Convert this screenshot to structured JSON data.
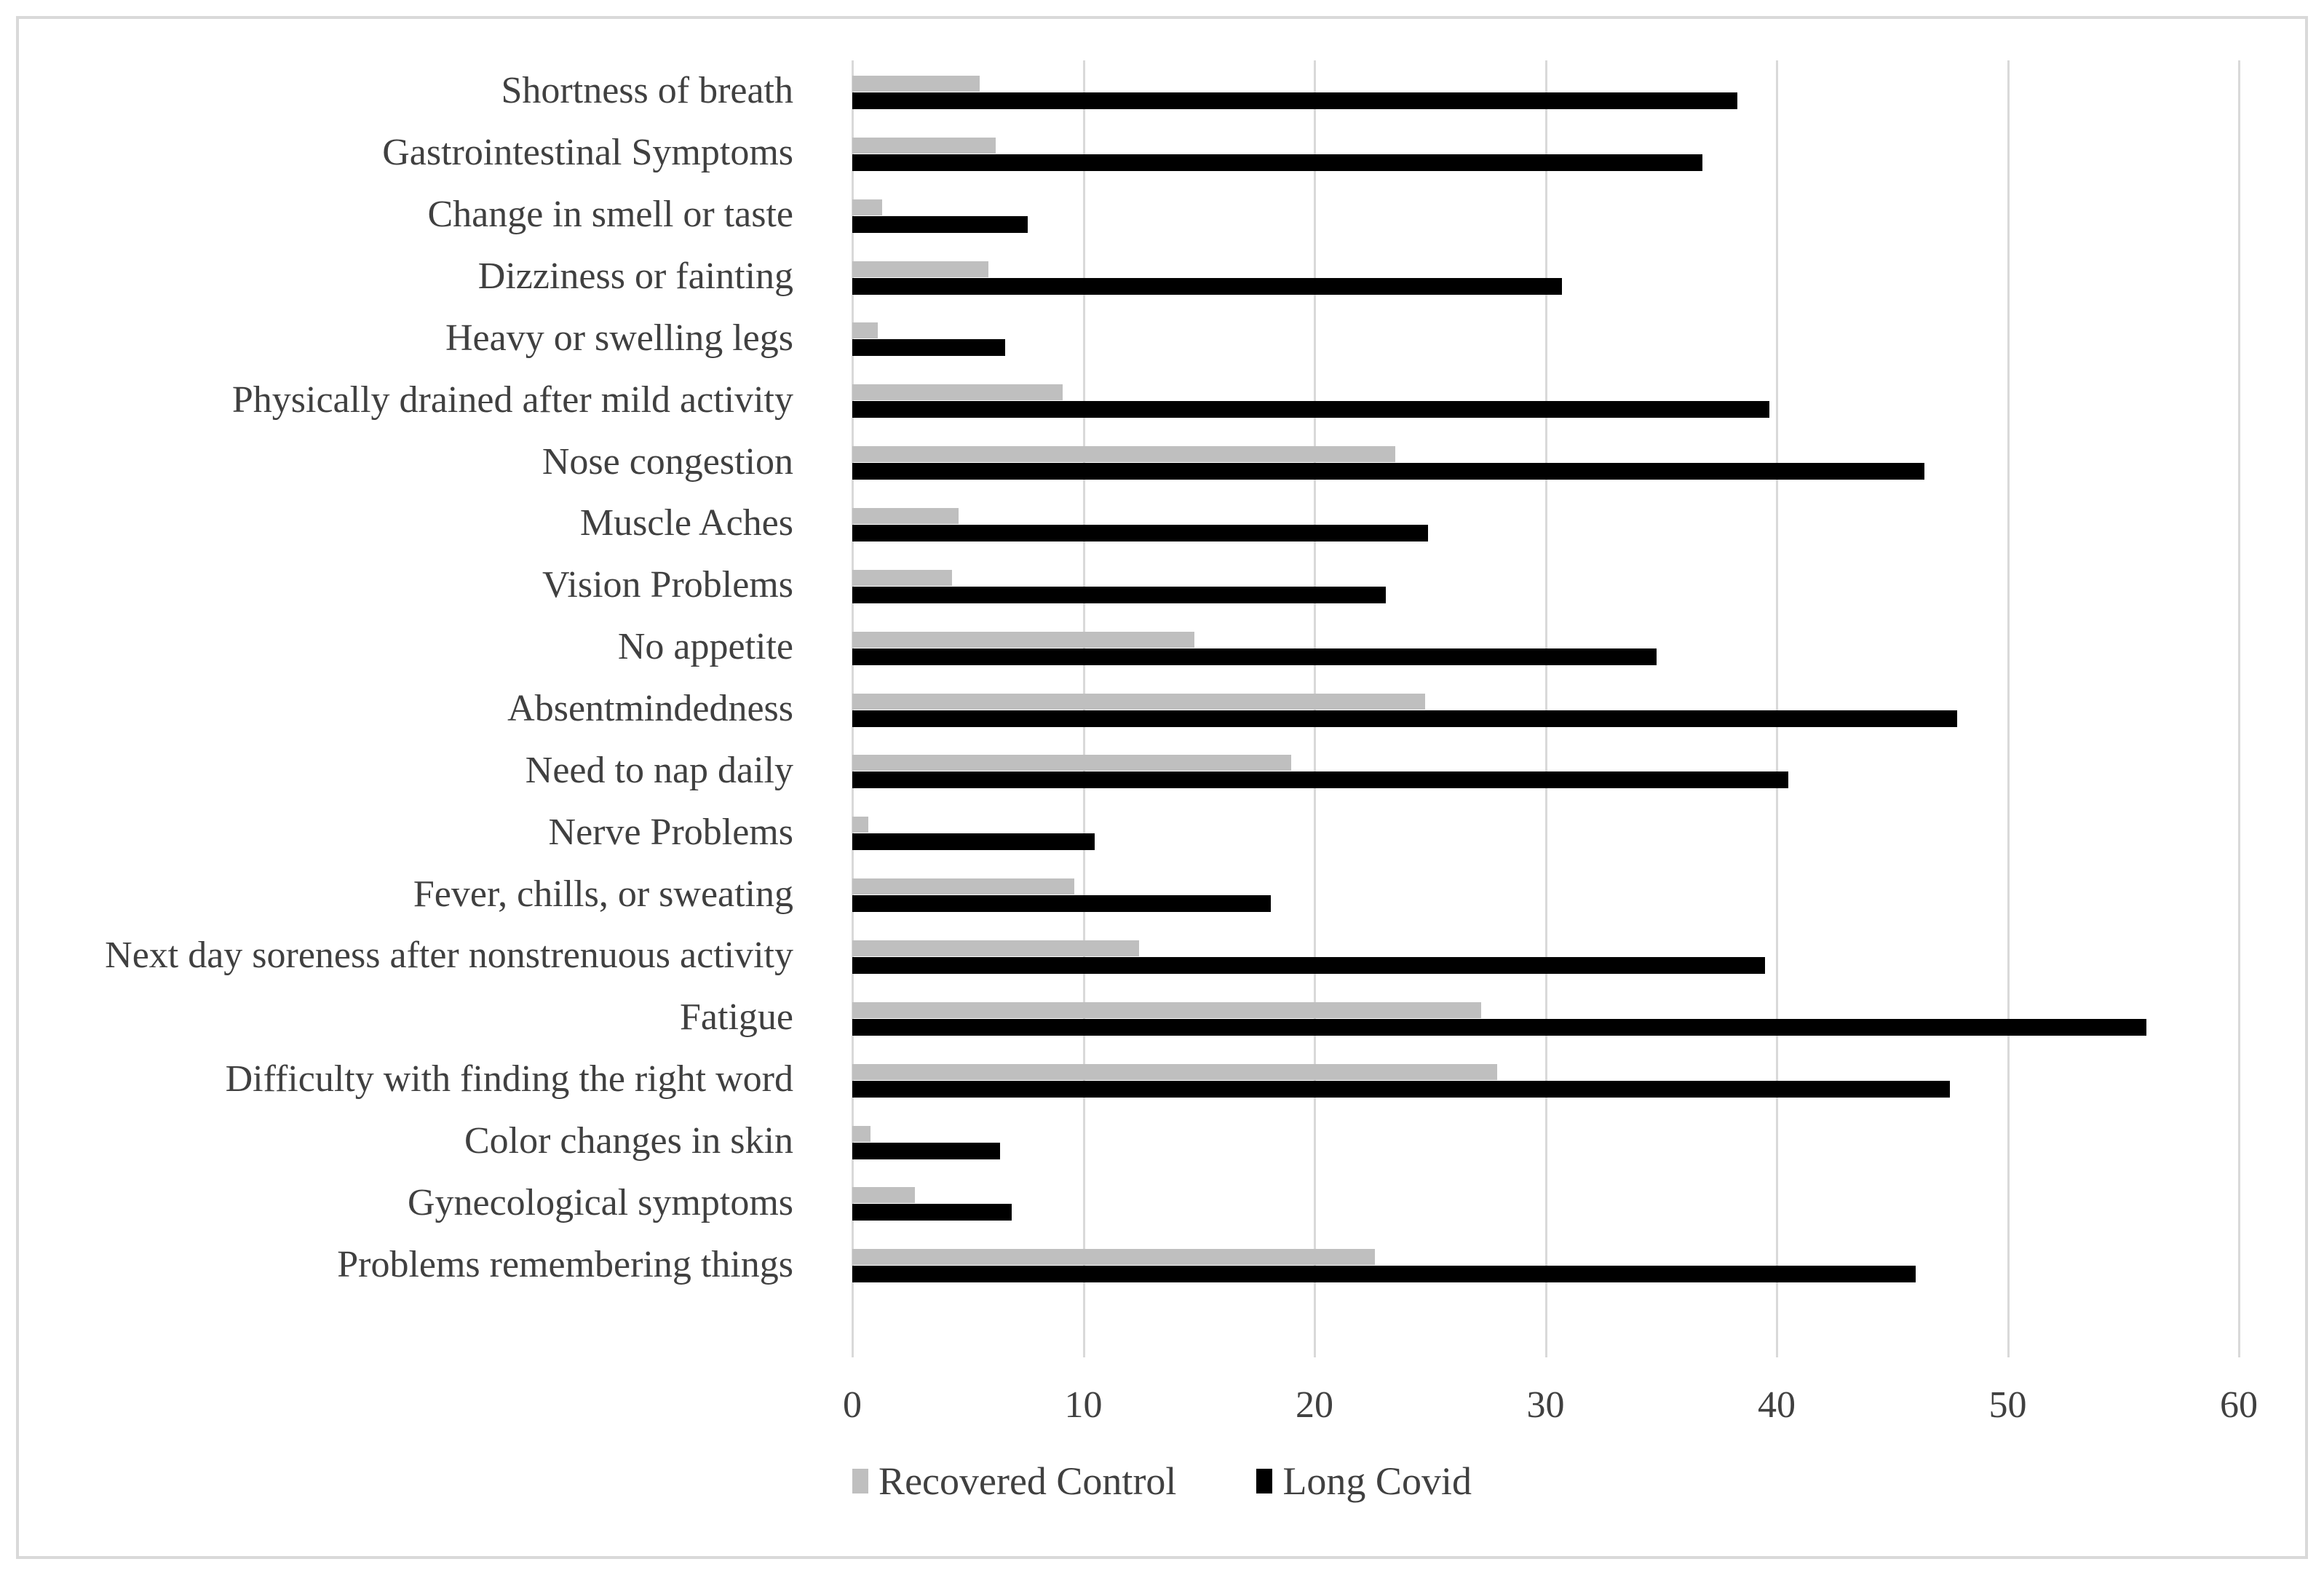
{
  "chart_data": {
    "type": "bar",
    "orientation": "horizontal",
    "title": "",
    "xlabel": "",
    "ylabel": "",
    "xlim": [
      0,
      60
    ],
    "xticks": [
      0,
      10,
      20,
      30,
      40,
      50,
      60
    ],
    "grid": "vertical-gridlines-on",
    "legend_position": "bottom-center",
    "categories": [
      "Shortness of breath",
      "Gastrointestinal Symptoms",
      "Change in smell or taste",
      "Dizziness or fainting",
      "Heavy or swelling legs",
      "Physically drained after mild activity",
      "Nose congestion",
      "Muscle Aches",
      "Vision Problems",
      "No appetite",
      "Absentmindedness",
      "Need to nap daily",
      "Nerve Problems",
      "Fever, chills, or sweating",
      "Next day soreness after nonstrenuous activity",
      "Fatigue",
      "Difficulty with finding the right word",
      "Color changes in skin",
      "Gynecological symptoms",
      "Problems remembering things"
    ],
    "series": [
      {
        "name": "Recovered Control",
        "color": "#bfbfbf",
        "values": [
          5.5,
          6.2,
          1.3,
          5.9,
          1.1,
          9.1,
          23.5,
          4.6,
          4.3,
          14.8,
          24.8,
          19.0,
          0.7,
          9.6,
          12.4,
          27.2,
          27.9,
          0.8,
          2.7,
          22.6
        ]
      },
      {
        "name": "Long Covid",
        "color": "#000000",
        "values": [
          38.3,
          36.8,
          7.6,
          30.7,
          6.6,
          39.7,
          46.4,
          24.9,
          23.1,
          34.8,
          47.8,
          40.5,
          10.5,
          18.1,
          39.5,
          56.0,
          47.5,
          6.4,
          6.9,
          46.0
        ]
      }
    ]
  },
  "colors": {
    "gridline": "#d9d9d9",
    "frame_border": "#d9d9d9",
    "text": "#404040",
    "background": "#ffffff"
  }
}
